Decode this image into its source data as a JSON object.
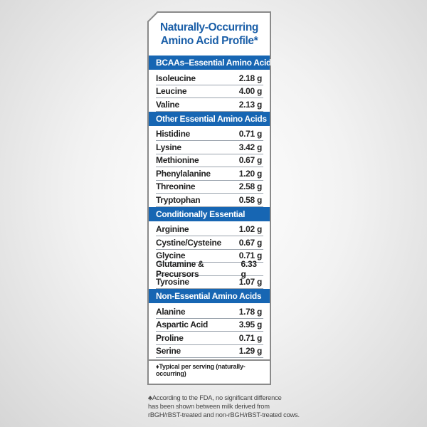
{
  "title": {
    "line1": "Naturally-Occurring",
    "line2": "Amino Acid Profile*"
  },
  "sections": [
    {
      "header": "BCAAs–Essential Amino Acids",
      "rows": [
        {
          "name": "Isoleucine",
          "value": "2.18 g"
        },
        {
          "name": "Leucine",
          "value": "4.00 g"
        },
        {
          "name": "Valine",
          "value": "2.13 g"
        }
      ]
    },
    {
      "header": "Other Essential Amino Acids",
      "rows": [
        {
          "name": "Histidine",
          "value": "0.71 g"
        },
        {
          "name": "Lysine",
          "value": "3.42 g"
        },
        {
          "name": "Methionine",
          "value": "0.67 g"
        },
        {
          "name": "Phenylalanine",
          "value": "1.20 g"
        },
        {
          "name": "Threonine",
          "value": "2.58 g"
        },
        {
          "name": "Tryptophan",
          "value": "0.58 g"
        }
      ]
    },
    {
      "header": "Conditionally Essential",
      "rows": [
        {
          "name": "Arginine",
          "value": "1.02 g"
        },
        {
          "name": "Cystine/Cysteine",
          "value": "0.67 g"
        },
        {
          "name": "Glycine",
          "value": "0.71 g"
        },
        {
          "name": "Glutamine & Precursors",
          "value": "6.33 g"
        },
        {
          "name": "Tyrosine",
          "value": "1.07 g"
        }
      ]
    },
    {
      "header": "Non-Essential Amino Acids",
      "rows": [
        {
          "name": "Alanine",
          "value": "1.78 g"
        },
        {
          "name": "Aspartic Acid",
          "value": "3.95 g"
        },
        {
          "name": "Proline",
          "value": "0.71 g"
        },
        {
          "name": "Serine",
          "value": "1.29 g"
        }
      ]
    }
  ],
  "footnote": "♦Typical  per serving (naturally-occurring)",
  "note": {
    "line1": "♣According to the FDA, no significant difference",
    "line2": "has been shown between milk derived from",
    "line3": "rBGH/rBST-treated and non-rBGH/rBST-treated cows."
  },
  "colors": {
    "header_bg": "#1766b3",
    "title": "#1b5fa8"
  }
}
